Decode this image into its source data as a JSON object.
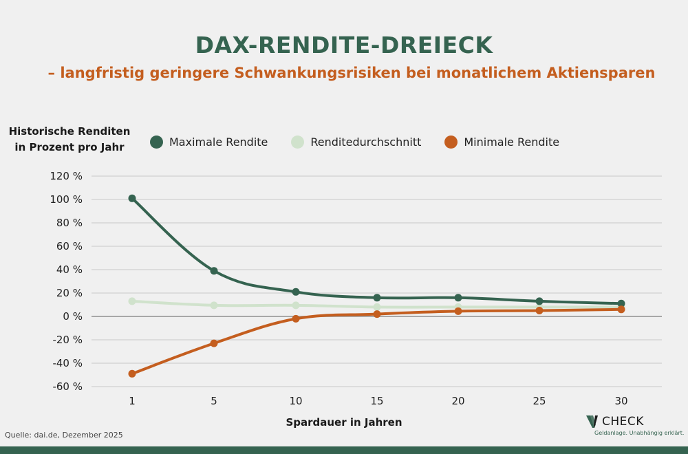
{
  "header": {
    "title": "DAX-RENDITE-DREIECK",
    "subtitle": "– langfristig geringere Schwankungsrisiken bei monatlichem Aktiensparen"
  },
  "legend": {
    "items": [
      {
        "label": "Maximale Rendite",
        "color": "#356350"
      },
      {
        "label": "Renditedurchschnitt",
        "color": "#d0e2cc"
      },
      {
        "label": "Minimale Rendite",
        "color": "#c45e1f"
      }
    ]
  },
  "footer": {
    "source": "Quelle: dai.de, Dezember 2025",
    "logo_text": "CHECK",
    "logo_tagline": "Geldanlage. Unabhängig erklärt."
  },
  "chart_data": {
    "type": "line",
    "title": "DAX-RENDITE-DREIECK",
    "subtitle": "– langfristig geringere Schwankungsrisiken bei monatlichem Aktiensparen",
    "xlabel": "Spardauer in Jahren",
    "ylabel": "Historische Renditen in Prozent pro Jahr",
    "x": [
      1,
      5,
      10,
      15,
      20,
      25,
      30
    ],
    "categories": [
      "1",
      "5",
      "10",
      "15",
      "20",
      "25",
      "30"
    ],
    "yticks": [
      "120 %",
      "100 %",
      "80 %",
      "60 %",
      "40 %",
      "20 %",
      "0 %",
      "-20 %",
      "-40 %",
      "-60 %"
    ],
    "ylim": [
      -60,
      120
    ],
    "grid": true,
    "legend_position": "top",
    "series": [
      {
        "name": "Maximale Rendite",
        "color": "#356350",
        "values": [
          101,
          39,
          21,
          16,
          16,
          13,
          11
        ]
      },
      {
        "name": "Renditedurchschnitt",
        "color": "#d0e2cc",
        "values": [
          13,
          9.5,
          9.5,
          8,
          8,
          8,
          8
        ]
      },
      {
        "name": "Minimale Rendite",
        "color": "#c45e1f",
        "values": [
          -49,
          -23,
          -2,
          2,
          4.5,
          5,
          6
        ]
      }
    ]
  }
}
